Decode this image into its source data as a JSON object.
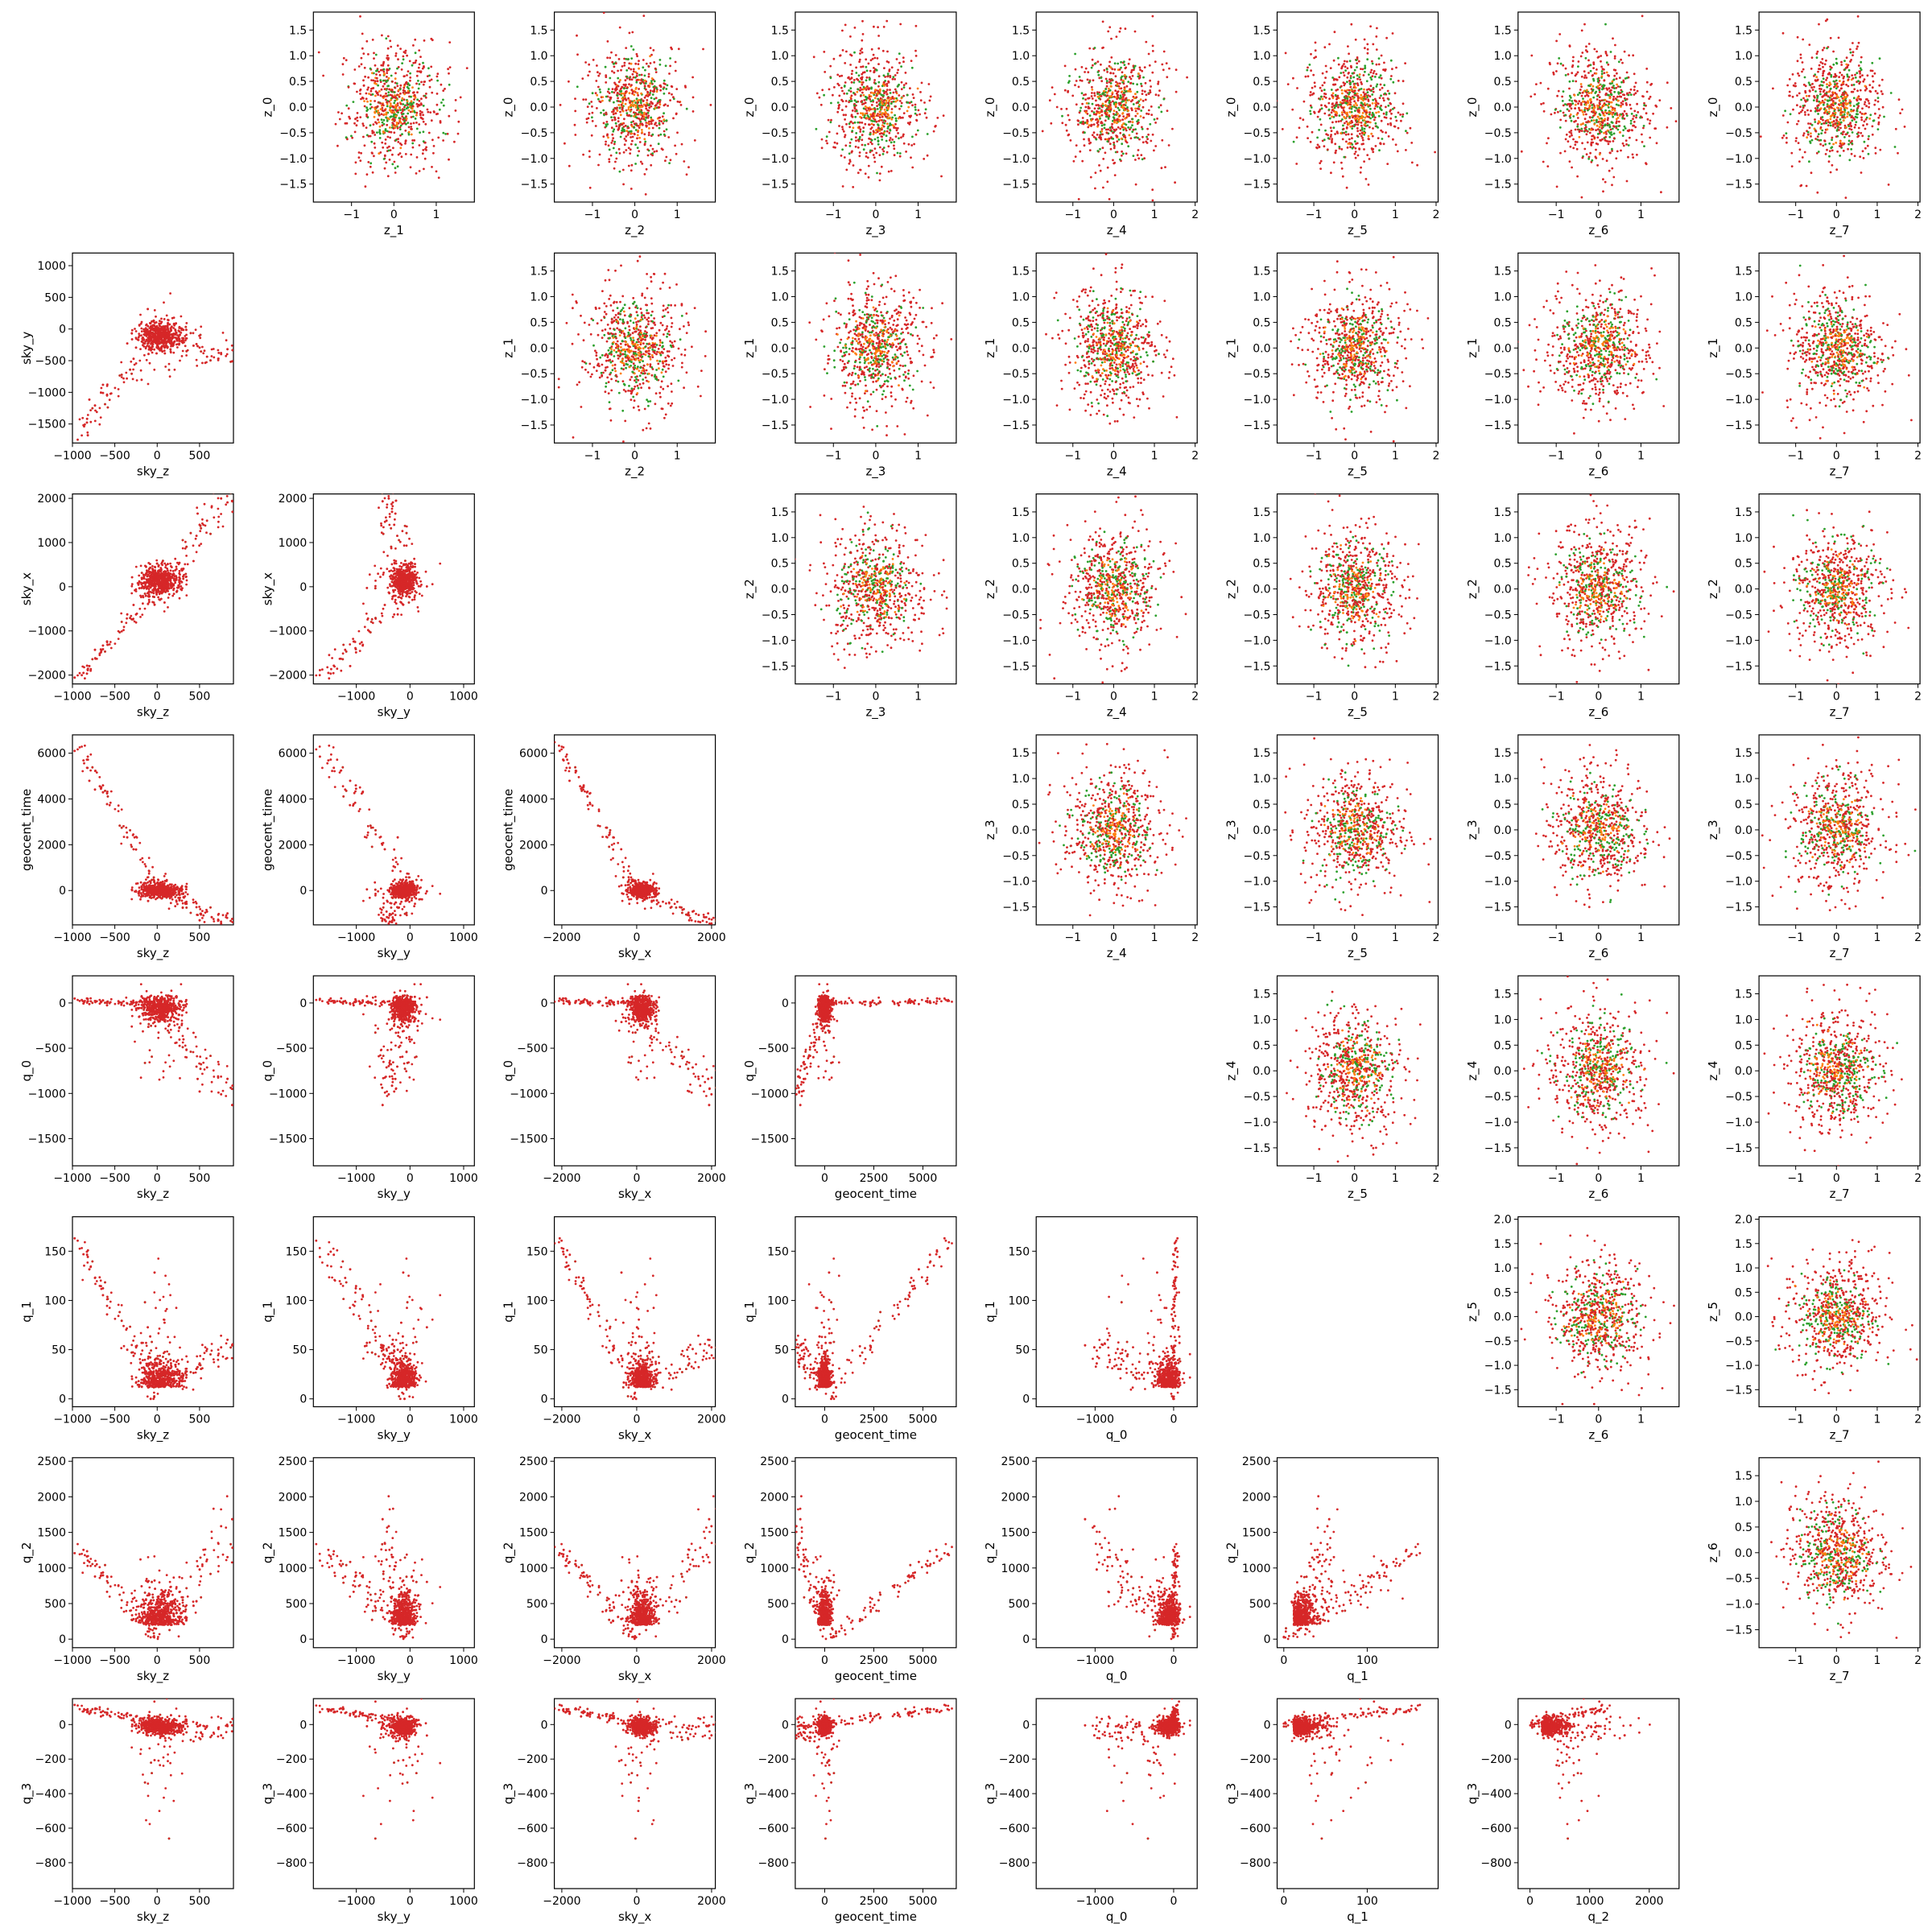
{
  "chart_data": {
    "type": "scatter",
    "layout": "lower-triangle physical-parameter scatter matrix with upper-triangle latent-space scatter matrix",
    "grid": false,
    "colors": {
      "c1": "#2ca02c",
      "c2": "#ff7f0e",
      "c3": "#d62728"
    },
    "label_info": {
      "sky_z": {
        "ticks": [
          -1000,
          -500,
          0,
          500
        ],
        "lim": [
          -1000,
          900
        ]
      },
      "sky_y": {
        "ticks": [
          -1000,
          0,
          1000
        ],
        "lim": [
          -1800,
          1200
        ]
      },
      "sky_x": {
        "ticks": [
          -2000,
          0,
          2000
        ],
        "lim": [
          -2200,
          2100
        ]
      },
      "geocent_time": {
        "ticks": [
          0,
          2500,
          5000
        ],
        "lim": [
          -1500,
          6700
        ]
      },
      "q_0": {
        "ticks": [
          -1000,
          0
        ],
        "lim": [
          -1750,
          300
        ]
      },
      "q_1": {
        "ticks": [
          0,
          100
        ],
        "lim": [
          -8,
          185
        ]
      },
      "q_2": {
        "ticks": [
          0,
          1000,
          2000
        ],
        "lim": [
          -200,
          2500
        ]
      },
      "sky_y_row": {
        "ticks": [
          -1500,
          -1000,
          -500,
          0,
          500,
          1000
        ],
        "lim": [
          -1800,
          1200
        ]
      },
      "sky_x_row": {
        "ticks": [
          -2000,
          -1000,
          0,
          1000,
          2000
        ],
        "lim": [
          -2200,
          2100
        ]
      },
      "geocent_time_row": {
        "ticks": [
          0,
          2000,
          4000,
          6000
        ],
        "lim": [
          -1500,
          6800
        ]
      },
      "q_0_row": {
        "ticks": [
          -1500,
          -1000,
          -500,
          0
        ],
        "lim": [
          -1800,
          300
        ]
      },
      "q_1_row": {
        "ticks": [
          0,
          50,
          100,
          150
        ],
        "lim": [
          -8,
          185
        ]
      },
      "q_2_row": {
        "ticks": [
          0,
          500,
          1000,
          1500,
          2000,
          2500
        ],
        "lim": [
          -120,
          2550
        ]
      },
      "q_3_row": {
        "ticks": [
          -800,
          -600,
          -400,
          -200,
          0
        ],
        "lim": [
          -950,
          150
        ]
      }
    },
    "lower_triangle": {
      "rows": [
        "sky_y",
        "sky_x",
        "geocent_time",
        "q_0",
        "q_1",
        "q_2",
        "q_3"
      ],
      "columns": [
        "sky_z",
        "sky_y",
        "sky_x",
        "geocent_time",
        "q_0",
        "q_1",
        "q_2"
      ],
      "tick_labels": {
        "sky_z": [
          "−1000",
          "−500",
          "0",
          "500"
        ],
        "sky_y": [
          "−1000",
          "0",
          "1000"
        ],
        "sky_x": [
          "−2000",
          "0",
          "2000"
        ],
        "geocent_time": [
          "0",
          "2500",
          "5000"
        ],
        "q_0": [
          "−1000",
          "0"
        ],
        "q_1": [
          "0",
          "100"
        ],
        "q_2": [
          "0",
          "1000",
          "2000"
        ],
        "sky_y_row": [
          "−1500",
          "−1000",
          "−500",
          "0",
          "500",
          "1000"
        ],
        "sky_x_row": [
          "−2000",
          "−1000",
          "0",
          "1000",
          "2000"
        ],
        "geocent_time_row": [
          "0",
          "2000",
          "4000",
          "6000"
        ],
        "q_0_row": [
          "−1500",
          "−1000",
          "−500",
          "0"
        ],
        "q_1_row": [
          "0",
          "50",
          "100",
          "150"
        ],
        "q_2_row": [
          "0",
          "500",
          "1000",
          "1500",
          "2000",
          "2500"
        ],
        "q_3_row": [
          "−800",
          "−600",
          "−400",
          "−200",
          "0"
        ]
      }
    },
    "upper_triangle": {
      "rows": [
        "z_0",
        "z_1",
        "z_2",
        "z_3",
        "z_4",
        "z_5",
        "z_6"
      ],
      "columns": [
        "z_1",
        "z_2",
        "z_3",
        "z_4",
        "z_5",
        "z_6",
        "z_7"
      ],
      "y_ticks": [
        -1.5,
        -1.0,
        -0.5,
        0.0,
        0.5,
        1.0,
        1.5
      ],
      "y_tick_labels": [
        "−1.5",
        "−1.0",
        "−0.5",
        "0.0",
        "0.5",
        "1.0",
        "1.5"
      ],
      "y_ticks_z5": [
        -1.5,
        -1.0,
        -0.5,
        0.0,
        0.5,
        1.0,
        1.5,
        2.0
      ],
      "y_tick_labels_z5": [
        "−1.5",
        "−1.0",
        "−0.5",
        "0.0",
        "0.5",
        "1.0",
        "1.5",
        "2.0"
      ],
      "x_ticks_default": [
        -1,
        0,
        1
      ],
      "x_tick_labels_default": [
        "−1",
        "0",
        "1"
      ],
      "x_ticks_wide": [
        -1,
        0,
        1,
        2
      ],
      "x_tick_labels_wide": [
        "−1",
        "0",
        "1",
        "2"
      ],
      "x_lim_default": [
        -1.9,
        1.9
      ],
      "x_lim_wide": [
        -1.9,
        2.05
      ],
      "y_lim_default": [
        -1.85,
        1.85
      ],
      "y_lim_z5": [
        -1.85,
        2.05
      ],
      "wide_x_columns": [
        "z_4",
        "z_5",
        "z_7"
      ]
    }
  }
}
